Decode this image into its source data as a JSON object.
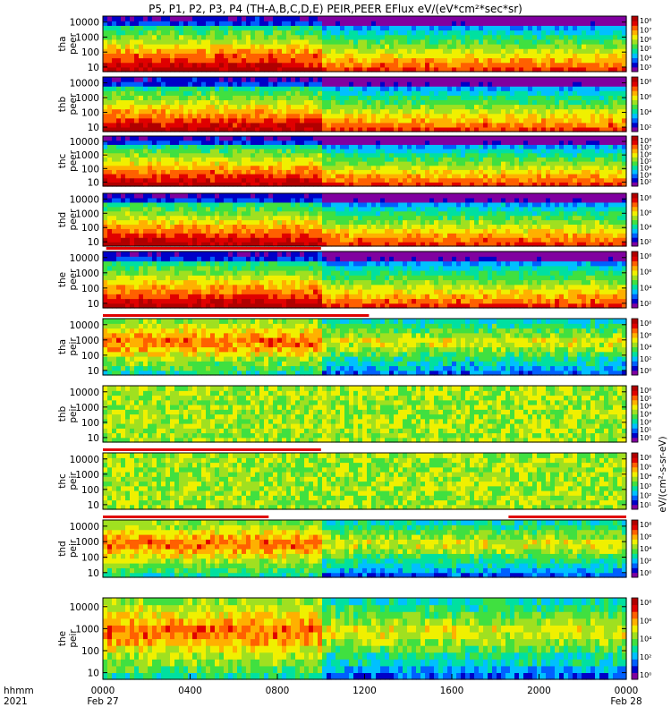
{
  "title": "P5, P1, P2, P3, P4 (TH-A,B,C,D,E) PEIR,PEER EFlux eV/(eV*cm²*sec*sr)",
  "colorbar_label": "eV/(cm²-s-sr-eV)",
  "x_axis": {
    "row_label_top": "hhmm",
    "row_label_bottom": "2021",
    "ticks": [
      {
        "hhmm": "0000",
        "date": "Feb 27",
        "hour": 0
      },
      {
        "hhmm": "0400",
        "date": "",
        "hour": 4
      },
      {
        "hhmm": "0800",
        "date": "",
        "hour": 8
      },
      {
        "hhmm": "1200",
        "date": "",
        "hour": 12
      },
      {
        "hhmm": "1600",
        "date": "",
        "hour": 16
      },
      {
        "hhmm": "2000",
        "date": "",
        "hour": 20
      },
      {
        "hhmm": "0000",
        "date": "Feb 28",
        "hour": 24
      }
    ]
  },
  "colors": {
    "palette": [
      "#8000a0",
      "#0000c8",
      "#0060ff",
      "#00c0ff",
      "#00e0a0",
      "#40e040",
      "#a0e020",
      "#f0f000",
      "#ffb000",
      "#ff6000",
      "#e00000",
      "#b00000"
    ],
    "saturated": "#b40000",
    "nodata": "#000000",
    "flag_red": "#e00000"
  },
  "chart_data": {
    "type": "heatmap",
    "x_unit": "hours since 0000 Feb 27 2021",
    "xlim": [
      0,
      24
    ],
    "y_scale": "log",
    "ylim": [
      5,
      25000
    ],
    "y_ticks": [
      10,
      100,
      1000,
      10000
    ],
    "panels": [
      {
        "probe": "tha",
        "species": "peer",
        "ytitle": "tha\npeer",
        "cb_ticks": [
          "10⁸",
          "10⁷",
          "10⁶",
          "10⁵",
          "10⁴",
          "10³"
        ],
        "flags": []
      },
      {
        "probe": "thb",
        "species": "peer",
        "ytitle": "thb\npeer",
        "cb_ticks": [
          "10⁸",
          "10⁶",
          "10⁴",
          "10²"
        ],
        "flags": []
      },
      {
        "probe": "thc",
        "species": "peer",
        "ytitle": "thc\npeer",
        "cb_ticks": [
          "10⁸",
          "10⁷",
          "10⁶",
          "10⁵",
          "10⁴",
          "10³",
          "10²"
        ],
        "flags": []
      },
      {
        "probe": "thd",
        "species": "peer",
        "ytitle": "thd\npeer",
        "cb_ticks": [
          "10⁸",
          "10⁶",
          "10⁴",
          "10²"
        ],
        "flags": []
      },
      {
        "probe": "the",
        "species": "peer",
        "ytitle": "the\npeer",
        "cb_ticks": [
          "10⁸",
          "10⁶",
          "10⁴",
          "10²"
        ],
        "flags": [
          [
            0.15,
            10.0
          ]
        ]
      },
      {
        "probe": "tha",
        "species": "peir",
        "ytitle": "tha\npeir",
        "cb_ticks": [
          "10⁸",
          "10⁶",
          "10⁴",
          "10²",
          "10⁰"
        ],
        "flags": [
          [
            0.0,
            12.2
          ]
        ]
      },
      {
        "probe": "thb",
        "species": "peir",
        "ytitle": "thb\npeir",
        "cb_ticks": [
          "10⁶",
          "10⁵",
          "10⁴",
          "10³",
          "10²",
          "10¹",
          "10⁰"
        ],
        "flags": []
      },
      {
        "probe": "thc",
        "species": "peir",
        "ytitle": "thc\npeir",
        "cb_ticks": [
          "10⁶",
          "10⁵",
          "10⁴",
          "10³",
          "10²",
          "10¹"
        ],
        "flags": [
          [
            0.0,
            10.0
          ]
        ]
      },
      {
        "probe": "thd",
        "species": "peir",
        "ytitle": "thd\npeir",
        "cb_ticks": [
          "10⁸",
          "10⁶",
          "10⁴",
          "10²",
          "10⁰"
        ],
        "flags": [
          [
            0.0,
            7.6
          ],
          [
            18.6,
            24.0
          ]
        ]
      },
      {
        "probe": "the",
        "species": "peir",
        "ytitle": "the\npeir",
        "cb_ticks": [
          "10⁸",
          "10⁶",
          "10⁴",
          "10²",
          "10⁰"
        ],
        "flags": []
      }
    ]
  }
}
